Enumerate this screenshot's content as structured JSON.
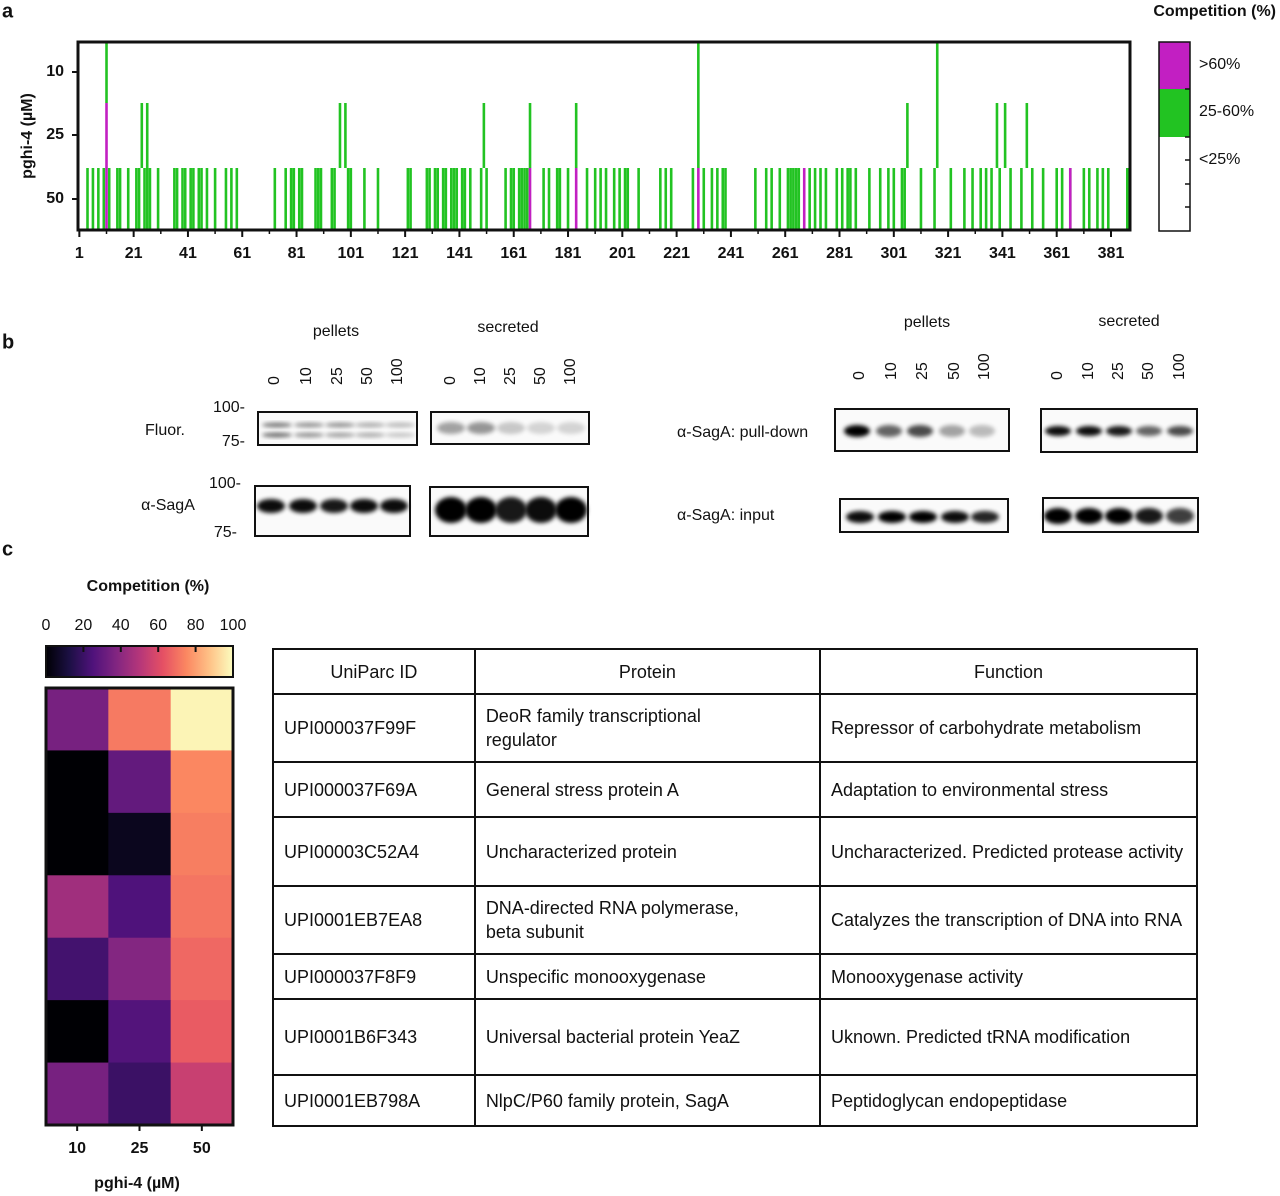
{
  "panel_labels": [
    "a",
    "b",
    "c"
  ],
  "panel_a": {
    "type": "strip",
    "y_label": "pghi-4 (µM)",
    "xlim": [
      0.5,
      388
    ],
    "xticks": [
      1,
      21,
      41,
      61,
      81,
      101,
      121,
      141,
      161,
      181,
      201,
      221,
      241,
      261,
      281,
      301,
      321,
      341,
      361,
      381
    ],
    "legend": {
      "title": "Competition (%)",
      "entries": [
        {
          "label": ">60%",
          "color": "#c21fc2"
        },
        {
          "label": "25-60%",
          "color": "#22c322"
        },
        {
          "label": "<25%",
          "color": "#ffffff"
        }
      ]
    },
    "rows": [
      {
        "label": "10",
        "mid_25_60": [
          11,
          229,
          317
        ]
      },
      {
        "label": "25",
        "over_60": [
          11
        ],
        "mid_25_60": [
          24,
          26,
          97,
          99,
          150,
          167,
          184,
          229,
          306,
          317,
          339,
          342,
          350
        ]
      },
      {
        "label": "50",
        "over_60": [
          11,
          167,
          184,
          229,
          268,
          366
        ],
        "mid_25_60": [
          4,
          6,
          8,
          10,
          12,
          15,
          16,
          19,
          22,
          23,
          25,
          26,
          27,
          30,
          36,
          37,
          39,
          40,
          42,
          43,
          45,
          46,
          48,
          51,
          55,
          57,
          59,
          73,
          77,
          79,
          80,
          82,
          83,
          88,
          89,
          90,
          94,
          95,
          100,
          101,
          106,
          111,
          122,
          123,
          129,
          130,
          132,
          133,
          135,
          136,
          138,
          139,
          140,
          142,
          143,
          145,
          149,
          151,
          158,
          160,
          161,
          163,
          164,
          165,
          166,
          172,
          174,
          177,
          178,
          181,
          188,
          191,
          193,
          195,
          198,
          200,
          202,
          203,
          207,
          215,
          217,
          219,
          227,
          231,
          234,
          236,
          238,
          239,
          250,
          254,
          256,
          259,
          262,
          263,
          264,
          265,
          266,
          270,
          272,
          274,
          276,
          280,
          282,
          284,
          285,
          287,
          292,
          296,
          299,
          301,
          304,
          305,
          311,
          316,
          322,
          327,
          330,
          333,
          335,
          337,
          340,
          344,
          348,
          352,
          356,
          361,
          363,
          366,
          371,
          373,
          376,
          378,
          380,
          387
        ]
      }
    ]
  },
  "panel_b": {
    "pellets": "pellets",
    "secreted": "secreted",
    "lanes": [
      "0",
      "10",
      "25",
      "50",
      "100"
    ],
    "fluor": "Fluor.",
    "saga": "α-SagA",
    "mw_top": "100-",
    "mw_bottom": "75-",
    "pulldown": "α-SagA: pull-down",
    "input": "α-SagA: input"
  },
  "panel_c": {
    "type": "heatmap",
    "title": "Competition (%)",
    "clim": [
      0,
      100
    ],
    "cbar_ticks": [
      0,
      20,
      40,
      60,
      80,
      100
    ],
    "x_categories": [
      "10",
      "25",
      "50"
    ],
    "x_label": "pghi-4 (µM)",
    "values": [
      [
        35,
        72,
        98
      ],
      [
        0,
        30,
        75
      ],
      [
        0,
        5,
        73
      ],
      [
        45,
        25,
        71
      ],
      [
        22,
        38,
        68
      ],
      [
        0,
        26,
        65
      ],
      [
        35,
        20,
        55
      ]
    ]
  },
  "table": {
    "header": [
      "UniParc ID",
      "Protein",
      "Function"
    ],
    "rows": [
      [
        "UPI000037F99F",
        "DeoR family transcriptional regulator",
        "Repressor of carbohydrate metabolism"
      ],
      [
        "UPI000037F69A",
        "General stress protein A",
        "Adaptation to environmental stress"
      ],
      [
        "UPI00003C52A4",
        "Uncharacterized protein",
        "Uncharacterized. Predicted protease activity"
      ],
      [
        "UPI0001EB7EA8",
        "DNA-directed RNA polymerase, beta subunit",
        "Catalyzes the transcription of DNA into RNA"
      ],
      [
        "UPI000037F8F9",
        "Unspecific monooxygenase",
        "Monooxygenase activity"
      ],
      [
        "UPI0001B6F343",
        "Universal bacterial protein YeaZ",
        "Uknown. Predicted tRNA modification"
      ],
      [
        "UPI0001EB798A",
        "NlpC/P60 family protein, SagA",
        "Peptidoglycan endopeptidase"
      ]
    ]
  }
}
